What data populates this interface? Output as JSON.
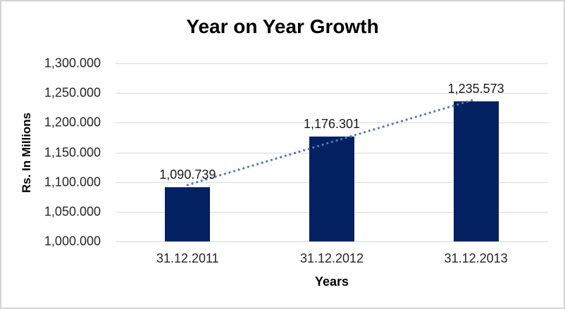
{
  "chart_data": {
    "type": "bar",
    "title": "Year on Year Growth",
    "categories": [
      "31.12.2011",
      "31.12.2012",
      "31.12.2013"
    ],
    "values": [
      1090.739,
      1176.301,
      1235.573
    ],
    "data_labels": [
      "1,090.739",
      "1,176.301",
      "1,235.573"
    ],
    "xlabel": "Years",
    "ylabel": "Rs. In Millions",
    "ylim": [
      1000,
      1300
    ],
    "yticks": [
      1000,
      1050,
      1100,
      1150,
      1200,
      1250,
      1300
    ],
    "ytick_labels": [
      "1,000.000",
      "1,050.000",
      "1,100.000",
      "1,150.000",
      "1,200.000",
      "1,250.000",
      "1,300.000"
    ],
    "grid": true,
    "legend": "none",
    "trendline": {
      "type": "linear",
      "style": "dotted"
    },
    "colors": {
      "bar": "#032061",
      "trendline": "#4a7ebb",
      "gridline": "#d9d9d9",
      "border": "#d3d3d3",
      "background": "#ffffff",
      "title_text": "#000000",
      "axis_text": "#262626"
    }
  }
}
